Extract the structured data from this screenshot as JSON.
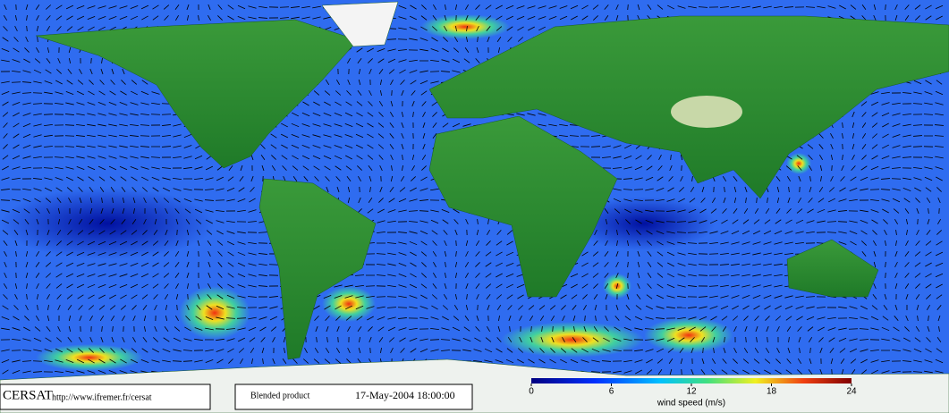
{
  "footer": {
    "logo": "CERSAT",
    "url": "http://www.ifremer.fr/cersat",
    "product": "Blended product",
    "timestamp": "17-May-2004 18:00:00"
  },
  "colorbar": {
    "label": "wind speed (m/s)",
    "lim": [
      0,
      24
    ],
    "ticks": [
      0,
      6,
      12,
      18,
      24
    ]
  }
}
